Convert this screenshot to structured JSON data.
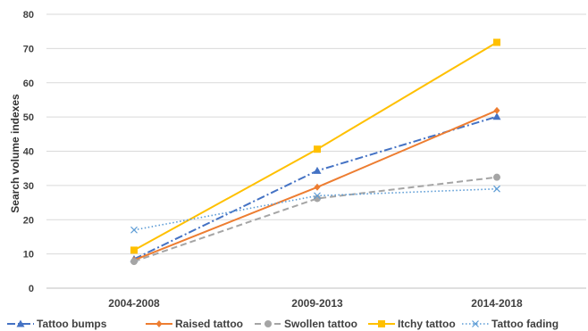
{
  "chart_data": {
    "type": "line",
    "title": "",
    "xlabel": "",
    "ylabel": "Search volume indexes",
    "categories": [
      "2004-2008",
      "2009-2013",
      "2014-2018"
    ],
    "ylim": [
      0,
      80
    ],
    "yticks": [
      0,
      10,
      20,
      30,
      40,
      50,
      60,
      70,
      80
    ],
    "grid": "horizontal",
    "legend_position": "bottom",
    "series": [
      {
        "name": "Tattoo bumps",
        "values": [
          8.5,
          34.3,
          50.1
        ],
        "color": "#4472C4",
        "marker": "triangle",
        "dash": "dash-dot"
      },
      {
        "name": "Raised tattoo",
        "values": [
          8.2,
          29.5,
          51.9
        ],
        "color": "#ED7D31",
        "marker": "diamond",
        "dash": "solid"
      },
      {
        "name": "Swollen tattoo",
        "values": [
          7.8,
          26.2,
          32.4
        ],
        "color": "#A5A5A5",
        "marker": "circle",
        "dash": "dashed"
      },
      {
        "name": "Itchy tattoo",
        "values": [
          11.1,
          40.6,
          71.8
        ],
        "color": "#FFC000",
        "marker": "square",
        "dash": "solid"
      },
      {
        "name": "Tattoo fading",
        "values": [
          17.0,
          27.0,
          29.0
        ],
        "color": "#5B9BD5",
        "marker": "x",
        "dash": "dotted"
      }
    ]
  }
}
